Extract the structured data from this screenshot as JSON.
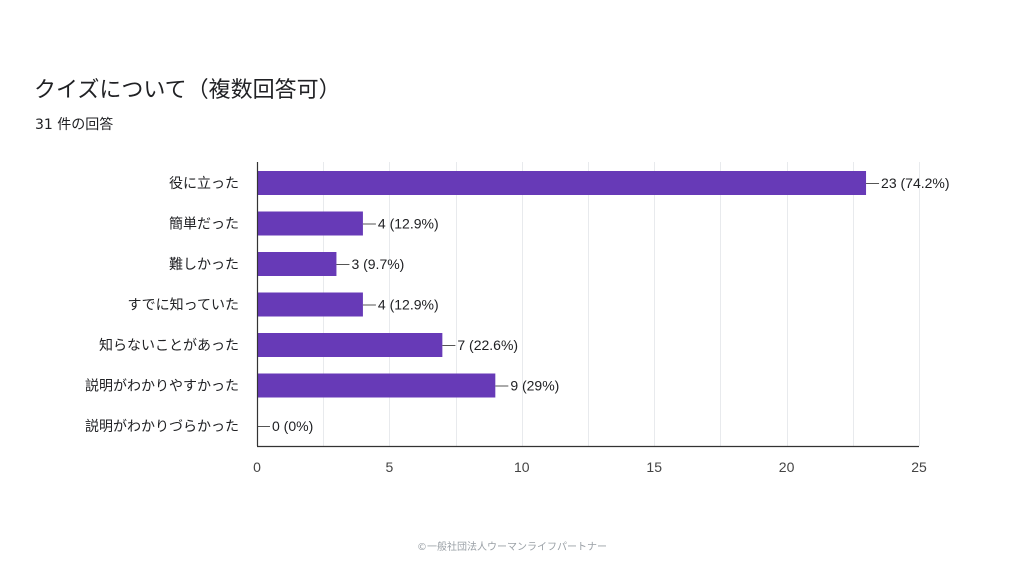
{
  "title": "クイズについて（複数回答可）",
  "subtitle": "31 件の回答",
  "footer": "©一般社団法人ウーマンライフパートナー",
  "colors": {
    "bar": "#673ab7",
    "grid": "#e8eaed",
    "axis": "#333333",
    "text": "#202124"
  },
  "chart_data": {
    "type": "bar",
    "orientation": "horizontal",
    "title": "クイズについて（複数回答可）",
    "subtitle": "31 件の回答",
    "categories": [
      "役に立った",
      "簡単だった",
      "難しかった",
      "すでに知っていた",
      "知らないことがあった",
      "説明がわかりやすかった",
      "説明がわかりづらかった"
    ],
    "values": [
      23,
      4,
      3,
      4,
      7,
      9,
      0
    ],
    "data_labels": [
      "23 (74.2%)",
      "4 (12.9%)",
      "3 (9.7%)",
      "4 (12.9%)",
      "7 (22.6%)",
      "9 (29%)",
      "0 (0%)"
    ],
    "xlim": [
      0,
      25
    ],
    "xticks": [
      0,
      5,
      10,
      15,
      20,
      25
    ],
    "grid": true,
    "legend": "none"
  }
}
